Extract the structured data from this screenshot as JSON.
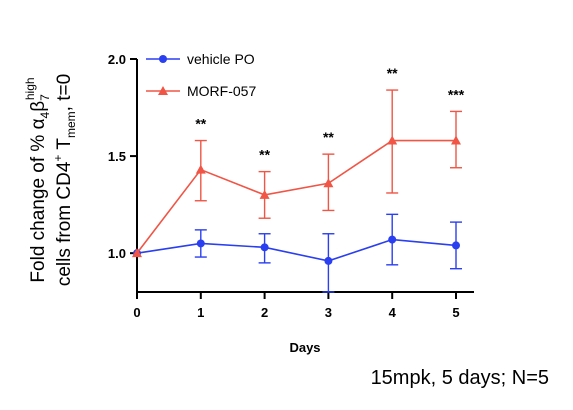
{
  "chart_data": {
    "type": "line",
    "xlabel": "Days",
    "ylabel_line1": "Fold change of % α4β7 high",
    "ylabel_line2": "cells from CD4+ Tmem, t=0",
    "ylabel_parts": {
      "l1_a": "Fold change of % α",
      "l1_sub1": "4",
      "l1_b": "β",
      "l1_sub2": "7",
      "l1_sup": "high",
      "l2_a": "cells from CD4",
      "l2_sup": "+",
      "l2_b": " T",
      "l2_sub": "mem",
      "l2_c": ", t=0"
    },
    "xlim": [
      0,
      5
    ],
    "ylim": [
      0.8,
      2.0
    ],
    "x_ticks": [
      0,
      1,
      2,
      3,
      4,
      5
    ],
    "y_ticks": [
      "1.0",
      "1.5",
      "2.0"
    ],
    "legend_position": "top-left",
    "series": [
      {
        "name": "vehicle PO",
        "color": "#2a3ff0",
        "marker": "circle",
        "x": [
          0,
          1,
          2,
          3,
          4,
          5
        ],
        "y": [
          1.0,
          1.05,
          1.03,
          0.96,
          1.07,
          1.04
        ],
        "err_upper": [
          1.0,
          1.12,
          1.1,
          1.1,
          1.2,
          1.16
        ],
        "err_lower": [
          1.0,
          0.98,
          0.95,
          0.8,
          0.94,
          0.92
        ]
      },
      {
        "name": "MORF-057",
        "color": "#f05545",
        "marker": "triangle",
        "x": [
          0,
          1,
          2,
          3,
          4,
          5
        ],
        "y": [
          1.0,
          1.43,
          1.3,
          1.36,
          1.58,
          1.58
        ],
        "err_upper": [
          1.0,
          1.58,
          1.42,
          1.51,
          1.84,
          1.73
        ],
        "err_lower": [
          1.0,
          1.27,
          1.18,
          1.22,
          1.31,
          1.44
        ]
      }
    ],
    "significance": [
      {
        "x": 1,
        "label": "**"
      },
      {
        "x": 2,
        "label": "**"
      },
      {
        "x": 3,
        "label": "**"
      },
      {
        "x": 4,
        "label": "**"
      },
      {
        "x": 5,
        "label": "***"
      }
    ],
    "note": "15mpk, 5 days; N=5"
  }
}
